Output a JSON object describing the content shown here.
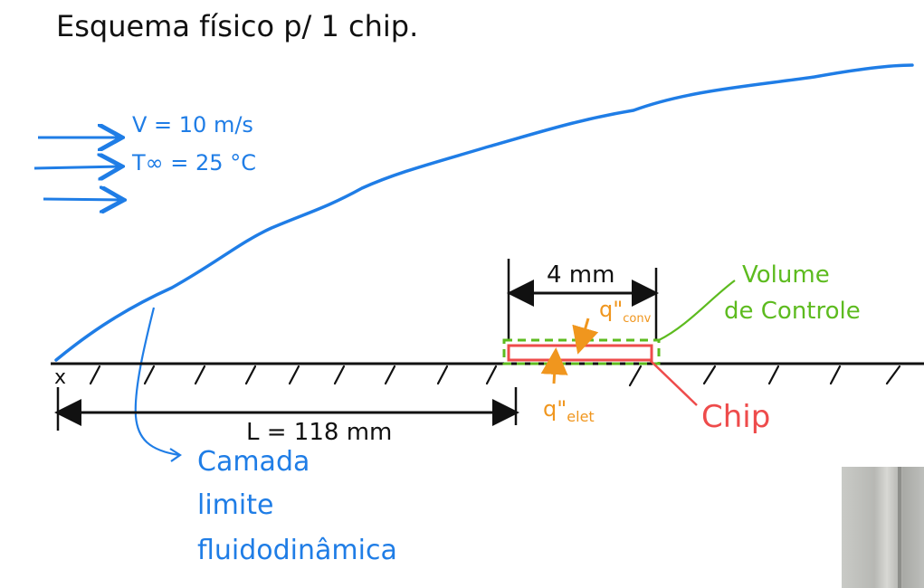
{
  "title": "Esquema físico p/ 1 chip.",
  "flow": {
    "velocity": "V = 10 m/s",
    "temperature": "T∞ = 25 °C"
  },
  "dimensions": {
    "chip_length": "4 mm",
    "plate_length": "L = 118 mm"
  },
  "labels": {
    "origin": "x",
    "control_volume_line1": "Volume",
    "control_volume_line2": "de Controle",
    "chip": "Chip",
    "q_conv": "q\"",
    "q_conv_sub": "conv",
    "q_elet": "q\"",
    "q_elet_sub": "elet",
    "boundary_layer_line1": "Camada",
    "boundary_layer_line2": "limite",
    "boundary_layer_line3": "fluidodinâmica"
  },
  "colors": {
    "ink": "#111111",
    "blue": "#1f7de6",
    "orange": "#f0961e",
    "green": "#5dbb1f",
    "red": "#ee4b4b"
  }
}
